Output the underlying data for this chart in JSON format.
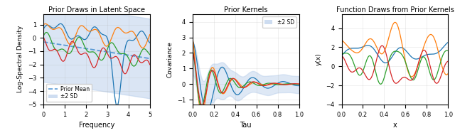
{
  "title1": "Prior Draws in Latent Space",
  "title2": "Prior Kernels",
  "title3": "Function Draws from Prior Kernels",
  "xlabel1": "Frequency",
  "xlabel2": "Tau",
  "xlabel3": "x",
  "ylabel1": "Log-Spectral Density",
  "ylabel2": "Covariance",
  "ylabel3": "y(x)",
  "colors": [
    "#1f77b4",
    "#ff7f0e",
    "#2ca02c",
    "#d62728"
  ],
  "shade_color": "#aec7e8",
  "mean_color": "#5b9bd5",
  "legend1_mean": "Prior Mean",
  "legend1_sd": "±2 SD",
  "legend2_sd": "±2 SD",
  "xlim1": [
    0,
    5
  ],
  "ylim1": [
    -5.0,
    1.8
  ],
  "xlim2": [
    0.0,
    1.0
  ],
  "ylim2": [
    -1.3,
    4.5
  ],
  "xlim3": [
    0.0,
    1.0
  ],
  "ylim3": [
    -4.0,
    5.5
  ],
  "figsize": [
    6.4,
    1.87
  ],
  "dpi": 100
}
